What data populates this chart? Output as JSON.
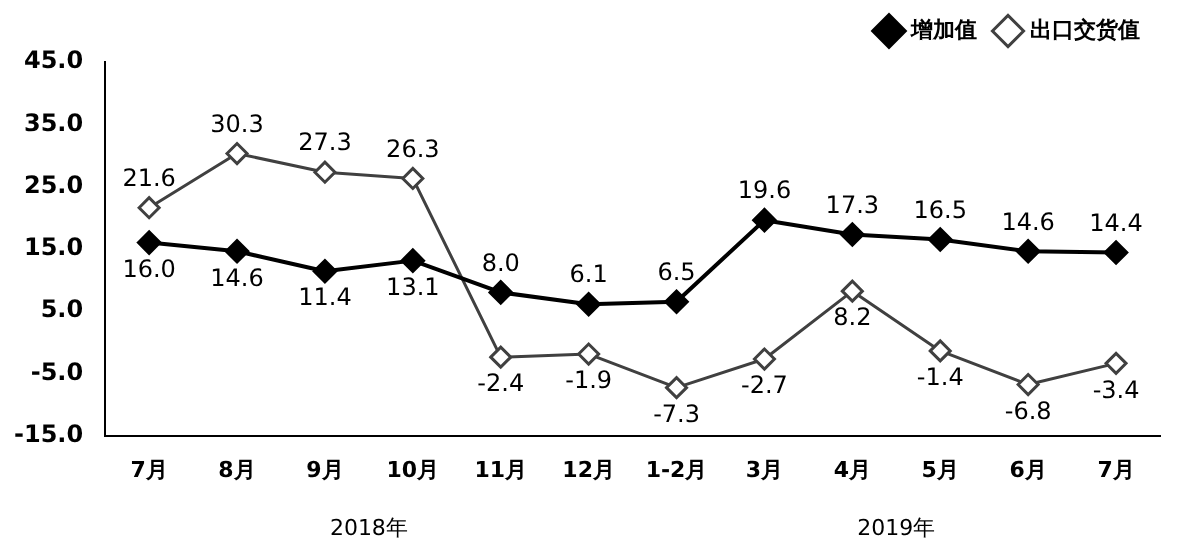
{
  "chart_data": {
    "type": "line",
    "categories": [
      "7月",
      "8月",
      "9月",
      "10月",
      "11月",
      "12月",
      "1-2月",
      "3月",
      "4月",
      "5月",
      "6月",
      "7月"
    ],
    "series": [
      {
        "name": "增加值",
        "color": "#000000",
        "values": [
          16.0,
          14.6,
          11.4,
          13.1,
          8.0,
          6.1,
          6.5,
          19.6,
          17.3,
          16.5,
          14.6,
          14.4
        ],
        "value_labels": [
          "16.0",
          "14.6",
          "11.4",
          "13.1",
          "8.0",
          "6.1",
          "6.5",
          "19.6",
          "17.3",
          "16.5",
          "14.6",
          "14.4"
        ]
      },
      {
        "name": "出口交货值",
        "color": "#404040",
        "values": [
          21.6,
          30.3,
          27.3,
          26.3,
          -2.4,
          -1.9,
          -7.3,
          -2.7,
          8.2,
          -1.4,
          -6.8,
          -3.4
        ],
        "value_labels": [
          "21.6",
          "30.3",
          "27.3",
          "26.3",
          "-2.4",
          "-1.9",
          "-7.3",
          "-2.7",
          "8.2",
          "-1.4",
          "-6.8",
          "-3.4"
        ]
      }
    ],
    "ylim": [
      -15,
      45
    ],
    "yticks": [
      {
        "value": -15,
        "label": "-15.0"
      },
      {
        "value": -5,
        "label": "-5.0"
      },
      {
        "value": 5,
        "label": "5.0"
      },
      {
        "value": 15,
        "label": "15.0"
      },
      {
        "value": 25,
        "label": "25.0"
      },
      {
        "value": 35,
        "label": "35.0"
      },
      {
        "value": 45,
        "label": "45.0"
      }
    ],
    "annotations": [
      "2018年",
      "2019年"
    ],
    "grid": false,
    "legend": "top right",
    "marker": "diamond",
    "line_style": "solid"
  }
}
